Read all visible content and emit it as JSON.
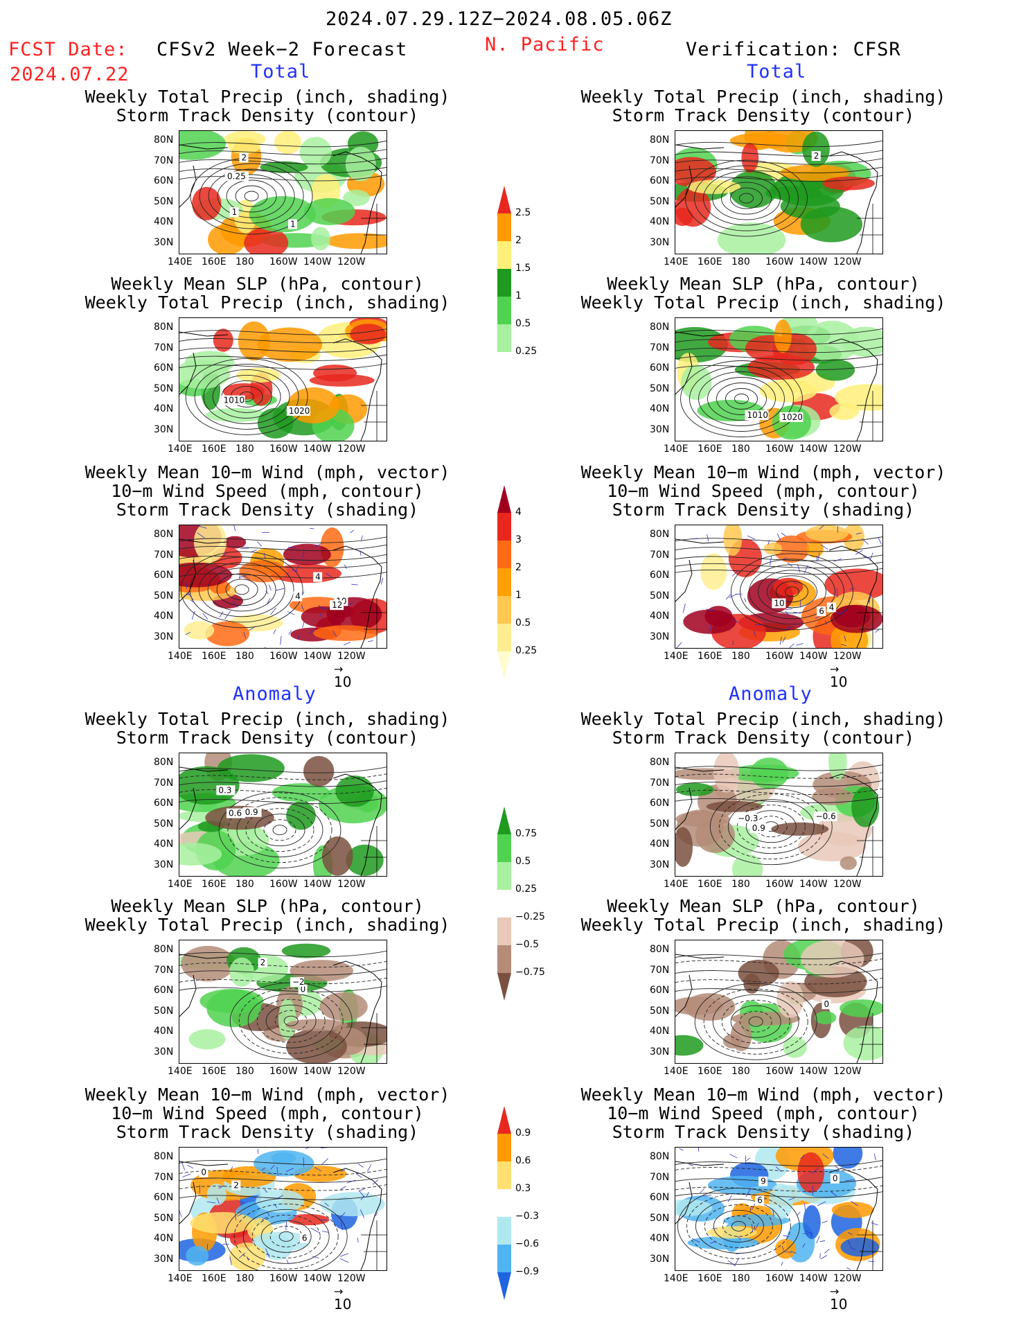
{
  "header": {
    "date_range": "2024.07.29.12Z−2024.08.05.06Z",
    "fcst_label": "FCST Date:",
    "fcst_date": "2024.07.22",
    "model": "CFSv2 Week−2 Forecast",
    "region": "N. Pacific",
    "verification": "Verification: CFSR",
    "total_label": "Total",
    "anomaly_label": "Anomaly"
  },
  "panel_titles": {
    "precip_storm": "Weekly Total Precip (inch, shading)\nStorm Track Density (contour)",
    "slp_precip": "Weekly Mean SLP (hPa, contour)\nWeekly Total Precip (inch, shading)",
    "wind_storm": "Weekly Mean 10−m Wind (mph, vector)\n10−m Wind Speed (mph, contour)\nStorm Track Density (shading)"
  },
  "axes": {
    "lat_ticks": [
      "80N",
      "70N",
      "60N",
      "50N",
      "40N",
      "30N"
    ],
    "lon_ticks": [
      "140E",
      "160E",
      "180",
      "160W",
      "140W",
      "120W"
    ],
    "vector_ref": "10"
  },
  "colorbars": {
    "precip_total": {
      "labels": [
        "2.5",
        "2",
        "1.5",
        "1",
        "0.5",
        "0.25"
      ],
      "colors": [
        "#e8281e",
        "#ff9a00",
        "#fff07a",
        "#1e9a1e",
        "#50d250",
        "#a8f0a0",
        "#ffffff"
      ]
    },
    "storm_total": {
      "labels": [
        "4",
        "3",
        "2",
        "1",
        "0.5",
        "0.25"
      ],
      "colors": [
        "#a0001e",
        "#e8281e",
        "#ff6a14",
        "#ffa000",
        "#ffc850",
        "#ffee90",
        "#fffcd0"
      ]
    },
    "precip_anom": {
      "labels": [
        "0.75",
        "0.5",
        "0.25",
        "−0.25",
        "−0.5",
        "−0.75"
      ],
      "colors": [
        "#1e9a1e",
        "#50d250",
        "#a8f0a0",
        "#ffffff",
        "#e8c8b8",
        "#b48c78",
        "#7a5040"
      ]
    },
    "storm_anom": {
      "labels": [
        "0.9",
        "0.6",
        "0.3",
        "−0.3",
        "−0.6",
        "−0.9"
      ],
      "colors": [
        "#e8281e",
        "#ff9a00",
        "#ffe070",
        "#ffffff",
        "#b0e8f0",
        "#50b4f0",
        "#1e64e0"
      ]
    }
  },
  "contour_labels": {
    "fc_precip_storm": [
      "1",
      "2",
      "1",
      "0.25"
    ],
    "vf_precip_storm": [
      "2"
    ],
    "fc_slp": [
      "1010",
      "1020"
    ],
    "vf_slp": [
      "1010",
      "1020"
    ],
    "fc_wind": [
      "4",
      "10",
      "4",
      "12"
    ],
    "vf_wind": [
      "6",
      "4",
      "10"
    ],
    "fc_precip_anom": [
      "0.6",
      "0.9",
      "0.3"
    ],
    "vf_precip_anom": [
      "0.9",
      "−0.3",
      "−0.6"
    ],
    "fc_slp_anom": [
      "0",
      "−2",
      "2"
    ],
    "vf_slp_anom": [
      "0"
    ],
    "fc_wind_anom": [
      "2",
      "0",
      "6"
    ],
    "vf_wind_anom": [
      "6",
      "0",
      "9"
    ]
  },
  "chart_data": [
    {
      "type": "heatmap",
      "title": "Weekly Total Precip (inch, shading) / Storm Track Density (contour)",
      "column": "CFSv2 Week−2 Forecast",
      "section": "Total",
      "scheme": "precip_total"
    },
    {
      "type": "heatmap",
      "title": "Weekly Mean SLP (hPa, contour) / Weekly Total Precip (inch, shading)",
      "column": "CFSv2 Week−2 Forecast",
      "section": "Total",
      "scheme": "precip_total"
    },
    {
      "type": "heatmap",
      "title": "Weekly Mean 10−m Wind (mph, vector) / 10−m Wind Speed (mph, contour) / Storm Track Density (shading)",
      "column": "CFSv2 Week−2 Forecast",
      "section": "Total",
      "scheme": "storm_total"
    },
    {
      "type": "heatmap",
      "title": "Weekly Total Precip (inch, shading) / Storm Track Density (contour)",
      "column": "CFSv2 Week−2 Forecast",
      "section": "Anomaly",
      "scheme": "precip_anom"
    },
    {
      "type": "heatmap",
      "title": "Weekly Mean SLP (hPa, contour) / Weekly Total Precip (inch, shading)",
      "column": "CFSv2 Week−2 Forecast",
      "section": "Anomaly",
      "scheme": "precip_anom"
    },
    {
      "type": "heatmap",
      "title": "Weekly Mean 10−m Wind (mph, vector) / 10−m Wind Speed (mph, contour) / Storm Track Density (shading)",
      "column": "CFSv2 Week−2 Forecast",
      "section": "Anomaly",
      "scheme": "storm_anom"
    },
    {
      "type": "heatmap",
      "title": "Weekly Total Precip (inch, shading) / Storm Track Density (contour)",
      "column": "Verification: CFSR",
      "section": "Total",
      "scheme": "precip_total"
    },
    {
      "type": "heatmap",
      "title": "Weekly Mean SLP (hPa, contour) / Weekly Total Precip (inch, shading)",
      "column": "Verification: CFSR",
      "section": "Total",
      "scheme": "precip_total"
    },
    {
      "type": "heatmap",
      "title": "Weekly Mean 10−m Wind (mph, vector) / 10−m Wind Speed (mph, contour) / Storm Track Density (shading)",
      "column": "Verification: CFSR",
      "section": "Total",
      "scheme": "storm_total"
    },
    {
      "type": "heatmap",
      "title": "Weekly Total Precip (inch, shading) / Storm Track Density (contour)",
      "column": "Verification: CFSR",
      "section": "Anomaly",
      "scheme": "precip_anom"
    },
    {
      "type": "heatmap",
      "title": "Weekly Mean SLP (hPa, contour) / Weekly Total Precip (inch, shading)",
      "column": "Verification: CFSR",
      "section": "Anomaly",
      "scheme": "precip_anom"
    },
    {
      "type": "heatmap",
      "title": "Weekly Mean 10−m Wind (mph, vector) / 10−m Wind Speed (mph, contour) / Storm Track Density (shading)",
      "column": "Verification: CFSR",
      "section": "Anomaly",
      "scheme": "storm_anom"
    }
  ]
}
